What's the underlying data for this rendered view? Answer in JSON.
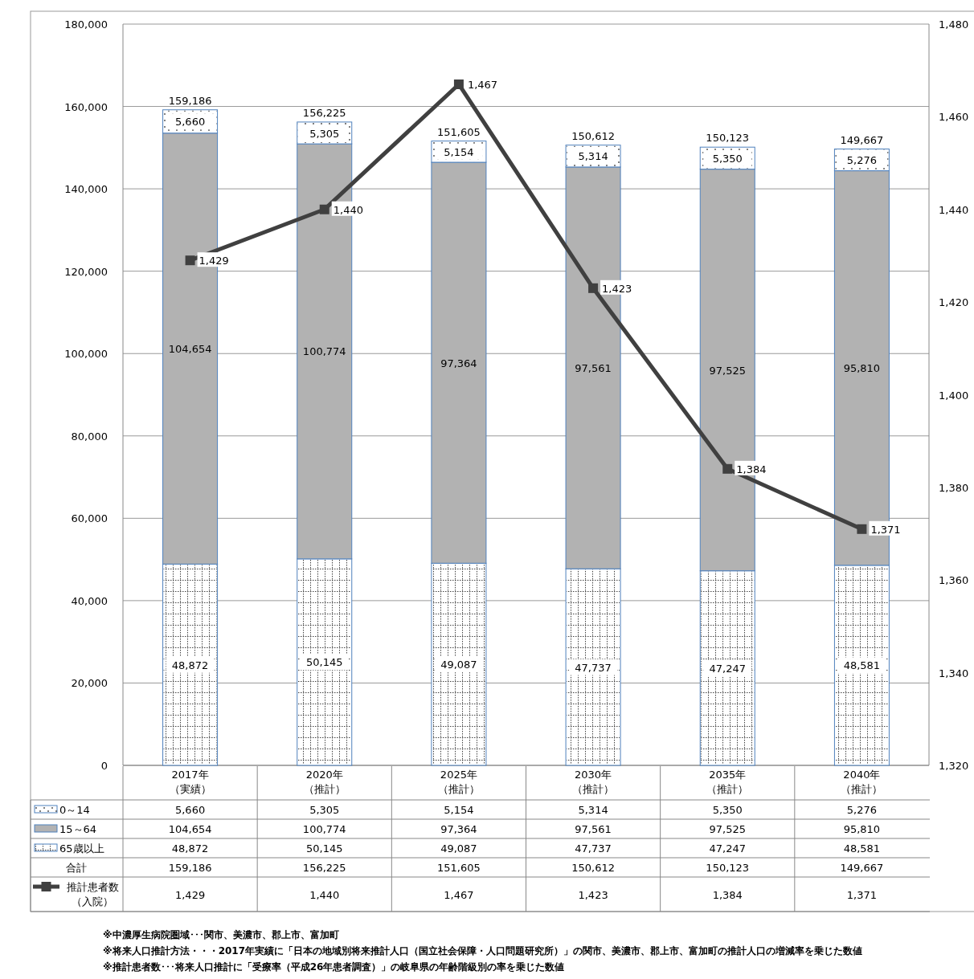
{
  "chart_data": {
    "type": "bar",
    "stacked": true,
    "categories": [
      "2017年（実績）",
      "2020年（推計）",
      "2025年（推計）",
      "2030年（推計）",
      "2035年（推計）",
      "2040年（推計）"
    ],
    "series": [
      {
        "name": "65歳以上",
        "color": "#ffffff",
        "values": [
          48872,
          50145,
          49087,
          47737,
          47247,
          48581
        ],
        "value_labels": [
          "48,872",
          "50,145",
          "49,087",
          "47,737",
          "47,247",
          "48,581"
        ]
      },
      {
        "name": "15～64",
        "color": "#b2b2b2",
        "values": [
          104654,
          100774,
          97364,
          97561,
          97525,
          95810
        ],
        "value_labels": [
          "104,654",
          "100,774",
          "97,364",
          "97,561",
          "97,525",
          "95,810"
        ]
      },
      {
        "name": "0～14",
        "color": "#ffffff",
        "values": [
          5660,
          5305,
          5154,
          5314,
          5350,
          5276
        ],
        "value_labels": [
          "5,660",
          "5,305",
          "5,154",
          "5,314",
          "5,350",
          "5,276"
        ]
      },
      {
        "name": "推計患者数（入院）",
        "type": "line",
        "axis": "y2",
        "color": "#404040",
        "marker": "square",
        "values": [
          1429,
          1440,
          1467,
          1423,
          1384,
          1371
        ],
        "value_labels": [
          "1,429",
          "1,440",
          "1,467",
          "1,423",
          "1,384",
          "1,371"
        ]
      }
    ],
    "totals": [
      "159,186",
      "156,225",
      "151,605",
      "150,612",
      "150,123",
      "149,667"
    ],
    "ylim": [
      0,
      180000
    ],
    "yticks": [
      0,
      {
        "value": 20000,
        "label": "20,000"
      },
      {
        "value": 40000,
        "label": "40,000"
      },
      {
        "value": 60000,
        "label": "60,000"
      },
      {
        "value": 80000,
        "label": "80,000"
      },
      {
        "value": 100000,
        "label": "100,000"
      },
      {
        "value": 120000,
        "label": "120,000"
      },
      {
        "value": 140000,
        "label": "140,000"
      },
      {
        "value": 160000,
        "label": "160,000"
      },
      {
        "value": 180000,
        "label": "180,000"
      }
    ],
    "y2lim": [
      1320,
      1480
    ],
    "y2ticks": [
      {
        "value": 1320,
        "label": "1,320"
      },
      {
        "value": 1340,
        "label": "1,340"
      },
      {
        "value": 1360,
        "label": "1,360"
      },
      {
        "value": 1380,
        "label": "1,380"
      },
      {
        "value": 1400,
        "label": "1,400"
      },
      {
        "value": 1420,
        "label": "1,420"
      },
      {
        "value": 1440,
        "label": "1,440"
      },
      {
        "value": 1460,
        "label": "1,460"
      },
      {
        "value": 1480,
        "label": "1,480"
      }
    ],
    "grid": "y",
    "legend": "bottom",
    "annotations": [
      "合計",
      "※中濃厚生病院圏域･･･関市、美濃市、郡上市、富加町",
      "※将来人口推計方法・・・2017年実績に「日本の地域別将来推計人口（国立社会保障・人口問題研究所）」の関市、美濃市、郡上市、富加町の推計人口の増減率を乗じた数値",
      "※推計患者数･･･将来人口推計に「受療率（平成26年患者調査）」の岐阜県の年齢階級別の率を乗じた数値"
    ]
  }
}
